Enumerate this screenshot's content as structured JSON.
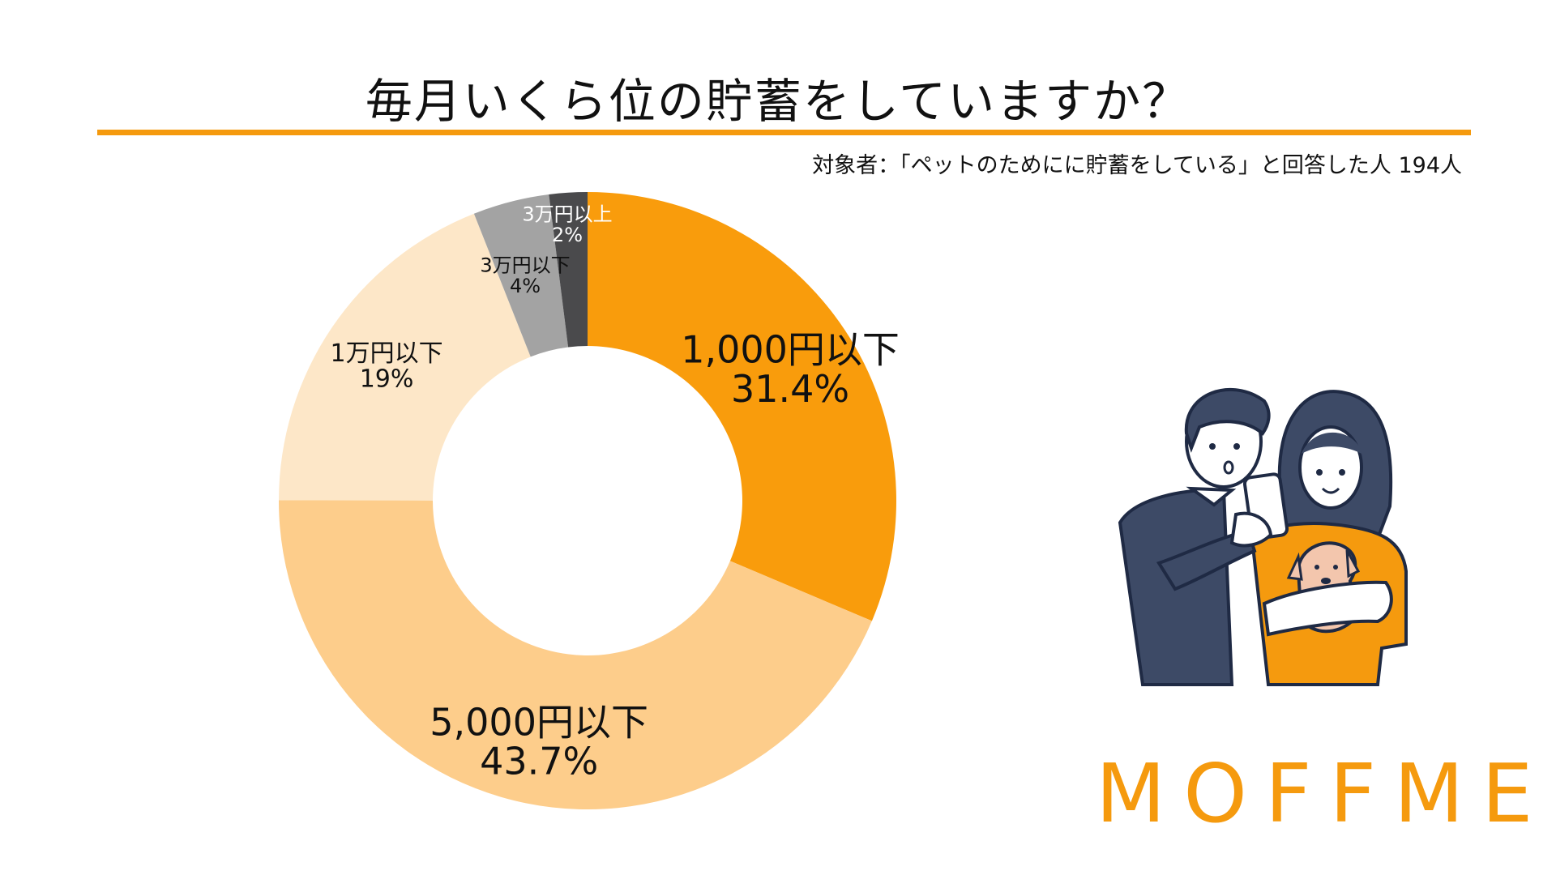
{
  "chart_data": {
    "type": "pie",
    "title": "毎月いくら位の貯蓄をしていますか？",
    "subtitle": "対象者：「ペットのためにに貯蓄をしている」と回答した人 194人",
    "series": [
      {
        "name": "1,000円以下",
        "value": 31.4,
        "pct_label": "31.4%",
        "color": "#f99c0c",
        "text_color": "#111111",
        "label_size": "large"
      },
      {
        "name": "5,000円以下",
        "value": 43.7,
        "pct_label": "43.7%",
        "color": "#fdcd8b",
        "text_color": "#111111",
        "label_size": "large"
      },
      {
        "name": "1万円以下",
        "value": 19,
        "pct_label": "19%",
        "color": "#fde7c8",
        "text_color": "#111111",
        "label_size": "medium"
      },
      {
        "name": "3万円以下",
        "value": 4,
        "pct_label": "4%",
        "color": "#a3a3a3",
        "text_color": "#111111",
        "label_size": "small"
      },
      {
        "name": "3万円以上",
        "value": 2,
        "pct_label": "2%",
        "color": "#4a4a4c",
        "text_color": "#ffffff",
        "label_size": "small"
      }
    ],
    "legend": "none"
  },
  "brand": {
    "logo_text": "MOFFME",
    "accent_color": "#f59a0e",
    "illustration": "couple-with-dog-and-smartphone-illustration"
  }
}
